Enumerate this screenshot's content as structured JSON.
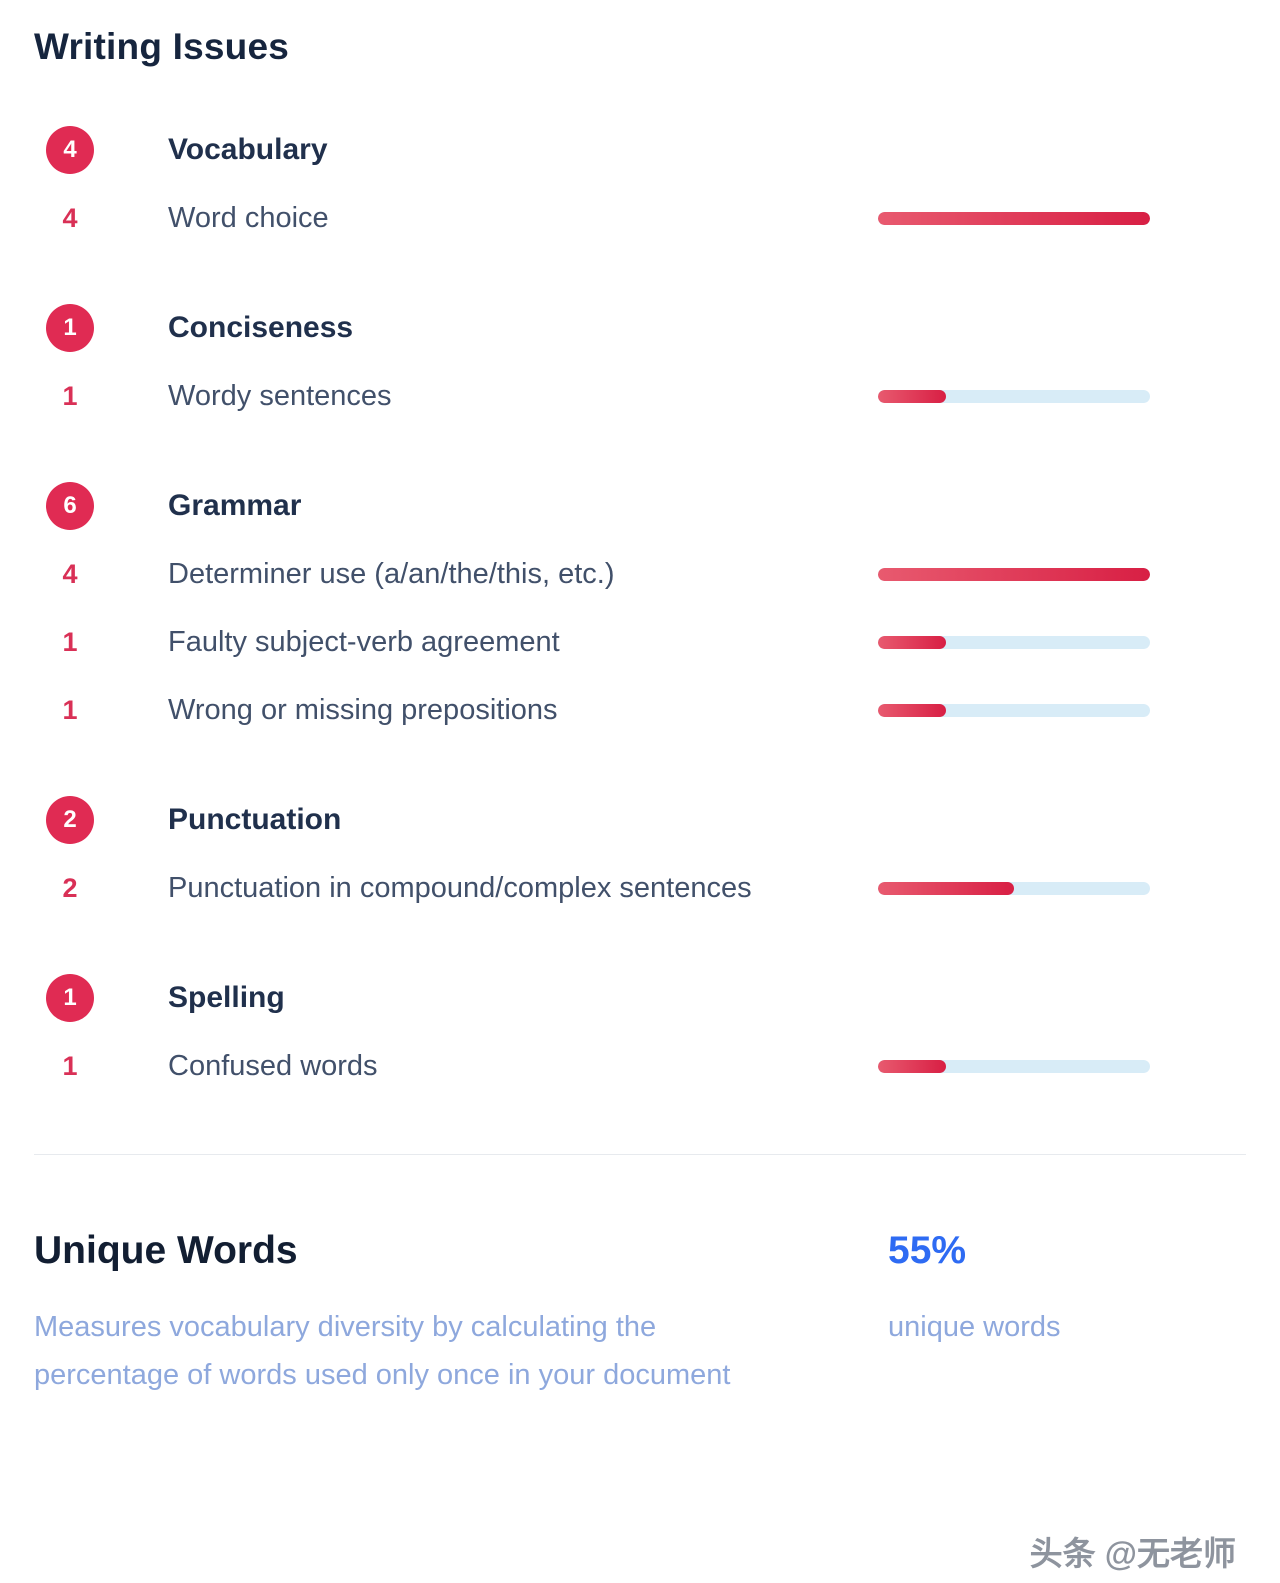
{
  "page": {
    "title": "Writing Issues"
  },
  "colors": {
    "accent_red": "#e02b53",
    "bar_fill_gradient": [
      "#e85a6f",
      "#d81f44"
    ],
    "bar_track": "#d8ecf7",
    "percent_blue": "#2e6bf3",
    "muted_blue": "#8ea8dd"
  },
  "categories": [
    {
      "name": "Vocabulary",
      "count": 4,
      "issues": [
        {
          "label": "Word choice",
          "count": 4,
          "fill": 100
        }
      ]
    },
    {
      "name": "Conciseness",
      "count": 1,
      "issues": [
        {
          "label": "Wordy sentences",
          "count": 1,
          "fill": 25
        }
      ]
    },
    {
      "name": "Grammar",
      "count": 6,
      "issues": [
        {
          "label": "Determiner use (a/an/the/this, etc.)",
          "count": 4,
          "fill": 100
        },
        {
          "label": "Faulty subject-verb agreement",
          "count": 1,
          "fill": 25
        },
        {
          "label": "Wrong or missing prepositions",
          "count": 1,
          "fill": 25
        }
      ]
    },
    {
      "name": "Punctuation",
      "count": 2,
      "issues": [
        {
          "label": "Punctuation in compound/complex sentences",
          "count": 2,
          "fill": 50
        }
      ]
    },
    {
      "name": "Spelling",
      "count": 1,
      "issues": [
        {
          "label": "Confused words",
          "count": 1,
          "fill": 25
        }
      ]
    }
  ],
  "unique_words": {
    "title": "Unique Words",
    "value": "55%",
    "value_label": "unique words",
    "description": "Measures vocabulary diversity by calculating the percentage of words used only once in your document"
  },
  "watermark": "头条 @无老师"
}
